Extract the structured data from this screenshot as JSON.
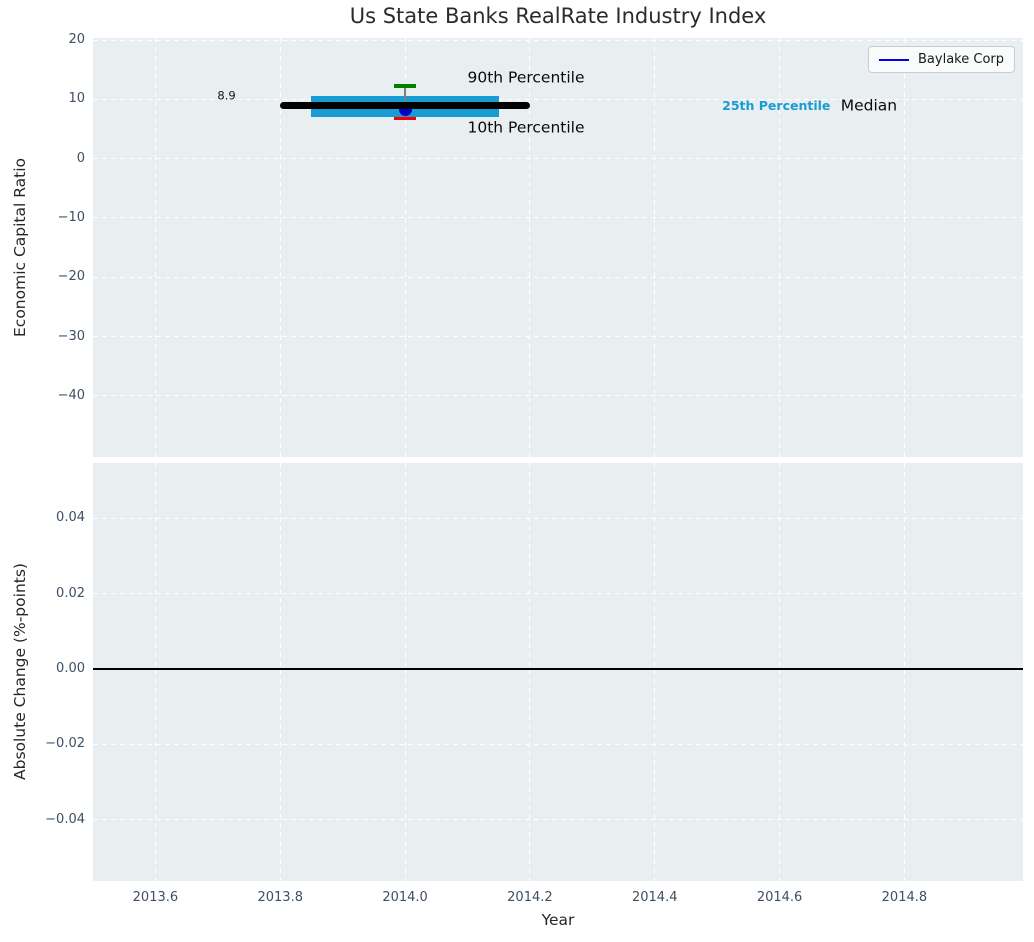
{
  "figure": {
    "background_color": "#ffffff",
    "axes_background_color": "#e9eef1",
    "grid_color": "#ffffff",
    "tick_color": "#3f4f66",
    "text_color": "#262626"
  },
  "chart_data": [
    {
      "type": "scatter",
      "title": "Us State Banks RealRate Industry Index",
      "ylabel": "Economic Capital Ratio",
      "xlim": [
        2013.5,
        2014.99
      ],
      "ylim": [
        -50.3,
        20.34
      ],
      "grid": true,
      "legend_position": "upper right",
      "show_xtick_labels": false,
      "xticks": [
        {
          "v": 2013.6,
          "label": "2013.6"
        },
        {
          "v": 2013.8,
          "label": "2013.8"
        },
        {
          "v": 2014.0,
          "label": "2014.0"
        },
        {
          "v": 2014.2,
          "label": "2014.2"
        },
        {
          "v": 2014.4,
          "label": "2014.4"
        },
        {
          "v": 2014.6,
          "label": "2014.6"
        },
        {
          "v": 2014.8,
          "label": "2014.8"
        }
      ],
      "yticks": [
        {
          "v": 20,
          "label": "20"
        },
        {
          "v": 10,
          "label": "10"
        },
        {
          "v": 0,
          "label": "0"
        },
        {
          "v": -10,
          "label": "−10"
        },
        {
          "v": -20,
          "label": "−20"
        },
        {
          "v": -30,
          "label": "−30"
        },
        {
          "v": -40,
          "label": "−40"
        }
      ],
      "legend": {
        "entries": [
          {
            "label": "Baylake Corp",
            "color": "#0000ee"
          }
        ]
      },
      "series": [
        {
          "name": "interquartile-band",
          "type": "hband",
          "x0": 2013.85,
          "x1": 2014.15,
          "y_low": 7.1,
          "y_high": 10.5,
          "color": "#189cd4"
        },
        {
          "name": "percentile-whisker",
          "type": "errorbar",
          "x": 2014.0,
          "y_low": 6.8,
          "y_high": 12.2,
          "cap_halfwidth": 0.0176,
          "line_color": "#7f7f7f",
          "cap_high_color": "#008000",
          "cap_low_color": "#f40000"
        },
        {
          "name": "baylake-corp-point",
          "type": "point",
          "x": 2014.0,
          "y": 8.3,
          "color": "#0000cd"
        },
        {
          "name": "median-line",
          "type": "hline-segment",
          "x0": 2013.8,
          "x1": 2014.2,
          "y": 8.9,
          "color": "#000000"
        }
      ],
      "annotations": [
        {
          "text": "8.9",
          "x": 2013.714,
          "y": 10.56,
          "anchor": "middle",
          "style": "value-label"
        },
        {
          "text": "90th Percentile",
          "x": 2014.1,
          "y": 13.6,
          "anchor": "start",
          "style": "percentile-label"
        },
        {
          "text": "10th Percentile",
          "x": 2014.1,
          "y": 5.2,
          "anchor": "start",
          "style": "percentile-label"
        },
        {
          "text": "25th Percentile",
          "x": 2014.508,
          "y": 8.88,
          "anchor": "start",
          "style": "p25-label"
        },
        {
          "text": "Median",
          "x": 2014.698,
          "y": 8.88,
          "anchor": "start",
          "style": "median-label"
        }
      ]
    },
    {
      "type": "line",
      "ylabel": "Absolute Change (%-points)",
      "xlabel": "Year",
      "xlim": [
        2013.5,
        2014.99
      ],
      "ylim": [
        -0.0562,
        0.0546
      ],
      "grid": true,
      "show_xtick_labels": true,
      "xticks": [
        {
          "v": 2013.6,
          "label": "2013.6"
        },
        {
          "v": 2013.8,
          "label": "2013.8"
        },
        {
          "v": 2014.0,
          "label": "2014.0"
        },
        {
          "v": 2014.2,
          "label": "2014.2"
        },
        {
          "v": 2014.4,
          "label": "2014.4"
        },
        {
          "v": 2014.6,
          "label": "2014.6"
        },
        {
          "v": 2014.8,
          "label": "2014.8"
        }
      ],
      "yticks": [
        {
          "v": 0.04,
          "label": "0.04"
        },
        {
          "v": 0.02,
          "label": "0.02"
        },
        {
          "v": 0.0,
          "label": "0.00"
        },
        {
          "v": -0.02,
          "label": "−0.02"
        },
        {
          "v": -0.04,
          "label": "−0.04"
        }
      ],
      "zero_line": {
        "y": 0.0,
        "color": "#000000"
      },
      "series": []
    }
  ]
}
